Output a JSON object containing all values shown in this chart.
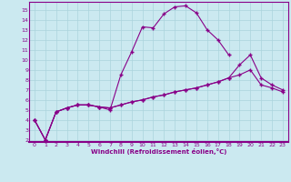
{
  "xlabel": "Windchill (Refroidissement éolien,°C)",
  "background_color": "#cbe9f0",
  "grid_color": "#aad4dd",
  "line_color": "#880088",
  "xlim": [
    -0.5,
    23.5
  ],
  "ylim": [
    1.8,
    15.8
  ],
  "xticks": [
    0,
    1,
    2,
    3,
    4,
    5,
    6,
    7,
    8,
    9,
    10,
    11,
    12,
    13,
    14,
    15,
    16,
    17,
    18,
    19,
    20,
    21,
    22,
    23
  ],
  "yticks": [
    2,
    3,
    4,
    5,
    6,
    7,
    8,
    9,
    10,
    11,
    12,
    13,
    14,
    15
  ],
  "line1_x": [
    0,
    1,
    2,
    3,
    4,
    5,
    6,
    7,
    8,
    9,
    10,
    11,
    12,
    13,
    14,
    15,
    16,
    17,
    18,
    19,
    20,
    21,
    22,
    23
  ],
  "line1_y": [
    4.0,
    2.0,
    4.8,
    5.2,
    5.5,
    5.5,
    5.3,
    5.0,
    8.5,
    10.8,
    13.3,
    13.2,
    14.6,
    15.3,
    15.4,
    14.7,
    13.0,
    12.0,
    10.5,
    null,
    null,
    null,
    null,
    null
  ],
  "line2_x": [
    0,
    1,
    2,
    3,
    4,
    5,
    6,
    7,
    8,
    9,
    10,
    11,
    12,
    13,
    14,
    15,
    16,
    17,
    18,
    19,
    20,
    21,
    22,
    23
  ],
  "line2_y": [
    4.0,
    2.0,
    4.8,
    5.2,
    5.5,
    5.5,
    5.3,
    5.2,
    5.5,
    5.8,
    6.0,
    6.3,
    6.5,
    6.8,
    7.0,
    7.2,
    7.5,
    7.8,
    8.2,
    9.5,
    10.5,
    8.2,
    7.5,
    7.0
  ],
  "line3_x": [
    0,
    1,
    2,
    3,
    4,
    5,
    6,
    7,
    8,
    9,
    10,
    11,
    12,
    13,
    14,
    15,
    16,
    17,
    18,
    19,
    20,
    21,
    22,
    23
  ],
  "line3_y": [
    4.0,
    2.0,
    4.8,
    5.2,
    5.5,
    5.5,
    5.3,
    5.2,
    5.5,
    5.8,
    6.0,
    6.3,
    6.5,
    6.8,
    7.0,
    7.2,
    7.5,
    7.8,
    8.2,
    8.5,
    9.0,
    7.5,
    7.2,
    6.8
  ]
}
